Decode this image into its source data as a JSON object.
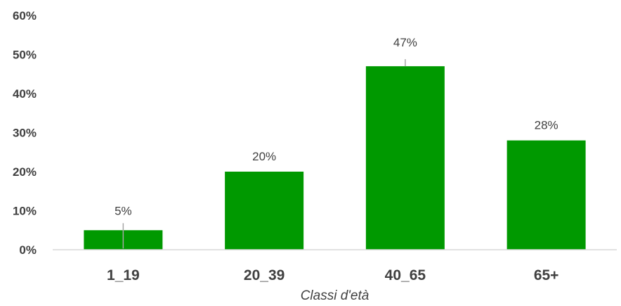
{
  "chart_data": {
    "type": "bar",
    "title": "",
    "xlabel": "Classi d'età",
    "ylabel": "",
    "categories": [
      "1_19",
      "20_39",
      "40_65",
      "65+"
    ],
    "values": [
      5,
      20,
      47,
      28
    ],
    "value_labels": [
      "5%",
      "20%",
      "47%",
      "28%"
    ],
    "ylim": [
      0,
      60
    ],
    "y_ticks": [
      0,
      10,
      20,
      30,
      40,
      50,
      60
    ],
    "y_tick_labels": [
      "0%",
      "10%",
      "20%",
      "30%",
      "40%",
      "50%",
      "60%"
    ],
    "grid": false,
    "legend": "none",
    "bar_color": "#009900",
    "label_color": "#404040",
    "leader_line_color": "#a6a6a6",
    "axis_color": "#d9d9d9"
  }
}
